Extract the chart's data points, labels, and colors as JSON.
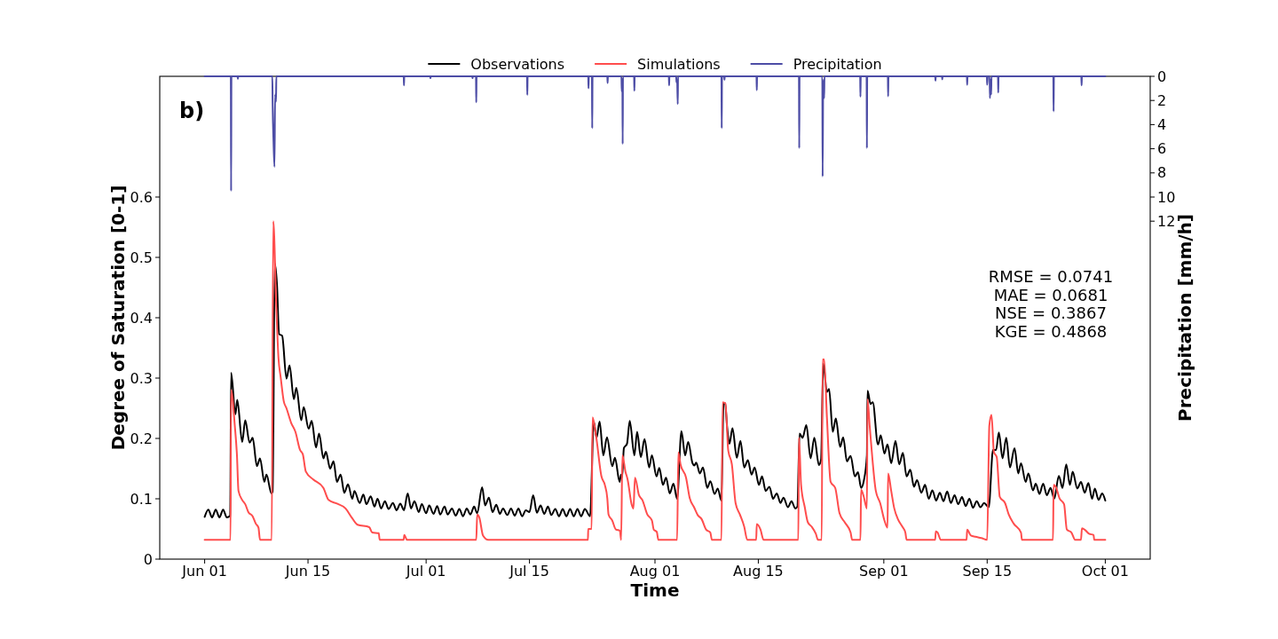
{
  "chart_data": {
    "type": "line",
    "xlabel": "Time",
    "ylabel": "Degree of Saturation [0-1]",
    "y2label": "Precipitation [mm/h]",
    "annotations": [
      "b)",
      "RMSE = 0.0741\nMAE = 0.0681\nNSE = 0.3867\nKGE = 0.4868"
    ],
    "xlim": [
      "--05-25T22:00",
      "--10-07T02:00"
    ],
    "xticks": [
      {
        "value": "--06-01",
        "label": "Jun 01"
      },
      {
        "value": "--06-15",
        "label": "Jun 15"
      },
      {
        "value": "--07-01",
        "label": "Jul 01"
      },
      {
        "value": "--07-15",
        "label": "Jul 15"
      },
      {
        "value": "--08-01",
        "label": "Aug 01"
      },
      {
        "value": "--08-15",
        "label": "Aug 15"
      },
      {
        "value": "--09-01",
        "label": "Sep 01"
      },
      {
        "value": "--09-15",
        "label": "Sep 15"
      },
      {
        "value": "--10-01",
        "label": "Oct 01"
      }
    ],
    "ylim": [
      0,
      0.8
    ],
    "yticks": [
      0,
      0.1,
      0.2,
      0.3,
      0.4,
      0.5,
      0.6
    ],
    "y2lim": [
      40,
      0
    ],
    "y2ticks": [
      0,
      2,
      4,
      6,
      8,
      10,
      12
    ],
    "legend": "top",
    "series": [
      {
        "name": "Observations",
        "color": "#000000",
        "x": [
          "--06-01T00:00",
          "--06-01T12:00",
          "--06-02T00:00",
          "--06-02T12:00",
          "--06-03T00:00",
          "--06-03T12:00",
          "--06-04T00:00",
          "--06-04T11:00",
          "--06-04T14:00",
          "--06-05T04:00",
          "--06-05T10:00",
          "--06-06T02:00",
          "--06-06T12:00",
          "--06-07T02:00",
          "--06-07T12:00",
          "--06-08T02:00",
          "--06-08T12:00",
          "--06-09T02:00",
          "--06-09T09:00",
          "--06-10T01:00",
          "--06-10T05:00",
          "--06-10T12:00",
          "--06-10T19:00",
          "--06-11T02:00",
          "--06-11T12:00",
          "--06-12T02:00",
          "--06-12T12:00",
          "--06-13T02:00",
          "--06-13T10:00",
          "--06-14T02:00",
          "--06-14T10:00",
          "--06-15T02:00",
          "--06-15T12:00",
          "--06-16T02:00",
          "--06-16T12:00",
          "--06-17T02:00",
          "--06-17T10:00",
          "--06-18T00:00",
          "--06-18T11:00",
          "--06-18T22:00",
          "--06-19T10:00",
          "--06-19T22:00",
          "--06-20T10:00",
          "--06-21T00:00",
          "--06-21T07:00",
          "--06-22T00:00",
          "--06-22T12:00",
          "--06-22T22:00",
          "--06-23T12:00",
          "--06-24T00:00",
          "--06-24T10:00",
          "--06-24T22:00",
          "--06-25T10:00",
          "--06-25T22:00",
          "--06-26T12:00",
          "--06-27T00:00",
          "--06-27T12:00",
          "--06-28T00:00",
          "--06-28T12:00",
          "--06-28T23:00",
          "--06-29T10:00",
          "--06-30T00:00",
          "--06-30T10:00",
          "--07-01T00:00",
          "--07-01T10:00",
          "--07-02T00:00",
          "--07-02T12:00",
          "--07-02T22:00",
          "--07-03T12:00",
          "--07-03T22:00",
          "--07-04T12:00",
          "--07-05T00:00",
          "--07-05T12:00",
          "--07-06T00:00",
          "--07-06T12:00",
          "--07-07T00:00",
          "--07-07T12:00",
          "--07-07T22:00",
          "--07-08T14:00",
          "--07-09T00:00",
          "--07-09T12:00",
          "--07-10T00:00",
          "--07-10T12:00",
          "--07-11T00:00",
          "--07-11T10:00",
          "--07-12T00:00",
          "--07-12T12:00",
          "--07-13T00:00",
          "--07-13T12:00",
          "--07-14T00:00",
          "--07-14T12:00",
          "--07-15T00:00",
          "--07-15T12:00",
          "--07-16T00:00",
          "--07-16T12:00",
          "--07-17T00:00",
          "--07-17T12:00",
          "--07-17T23:00",
          "--07-18T12:00",
          "--07-19T00:00",
          "--07-19T12:00",
          "--07-20T00:00",
          "--07-20T12:00",
          "--07-21T00:00",
          "--07-21T12:00",
          "--07-22T00:00",
          "--07-22T12:00",
          "--07-23T05:00",
          "--07-23T17:00",
          "--07-24T02:00",
          "--07-24T12:00",
          "--07-25T00:00",
          "--07-25T12:00",
          "--07-26T05:00",
          "--07-26T14:00",
          "--07-27T05:00",
          "--07-27T10:00",
          "--07-27T13:00",
          "--07-27T19:00",
          "--07-28T05:00",
          "--07-28T14:00",
          "--07-29T05:00",
          "--07-29T14:00",
          "--07-30T02:00",
          "--07-30T14:00",
          "--07-31T05:00",
          "--07-31T14:00",
          "--08-01T05:00",
          "--08-01T14:00",
          "--08-02T02:00",
          "--08-02T12:00",
          "--08-03T00:00",
          "--08-03T12:00",
          "--08-04T00:00",
          "--08-04T14:00",
          "--08-05T02:00",
          "--08-05T12:00",
          "--08-06T02:00",
          "--08-06T08:00",
          "--08-06T14:00",
          "--08-07T02:00",
          "--08-07T12:00",
          "--08-08T02:00",
          "--08-08T12:00",
          "--08-09T02:00",
          "--08-09T12:00",
          "--08-10T00:00",
          "--08-10T07:00",
          "--08-10T12:00",
          "--08-10T19:00",
          "--08-11T02:00",
          "--08-11T12:00",
          "--08-12T02:00",
          "--08-12T14:00",
          "--08-13T02:00",
          "--08-13T14:00",
          "--08-14T02:00",
          "--08-14T12:00",
          "--08-15T02:00",
          "--08-15T12:00",
          "--08-16T00:00",
          "--08-16T12:00",
          "--08-17T00:00",
          "--08-17T12:00",
          "--08-18T00:00",
          "--08-18T10:00",
          "--08-19T00:00",
          "--08-19T12:00",
          "--08-20T00:00",
          "--08-20T07:00",
          "--08-20T14:00",
          "--08-21T00:00",
          "--08-21T12:00",
          "--08-22T02:00",
          "--08-22T14:00",
          "--08-23T05:00",
          "--08-23T12:00",
          "--08-23T19:00",
          "--08-24T07:00",
          "--08-24T14:00",
          "--08-25T02:00",
          "--08-25T12:00",
          "--08-26T02:00",
          "--08-26T12:00",
          "--08-27T00:00",
          "--08-27T12:00",
          "--08-28T02:00",
          "--08-28T12:00",
          "--08-28T22:00",
          "--08-29T07:00",
          "--08-29T17:00",
          "--08-29T19:00",
          "--08-30T05:00",
          "--08-30T12:00",
          "--08-31T05:00",
          "--08-31T14:00",
          "--09-01T02:00",
          "--09-01T12:00",
          "--09-02T00:00",
          "--09-02T14:00",
          "--09-03T02:00",
          "--09-03T14:00",
          "--09-04T02:00",
          "--09-04T14:00",
          "--09-05T02:00",
          "--09-05T12:00",
          "--09-06T02:00",
          "--09-06T14:00",
          "--09-07T02:00",
          "--09-07T14:00",
          "--09-08T02:00",
          "--09-08T14:00",
          "--09-09T02:00",
          "--09-09T14:00",
          "--09-10T02:00",
          "--09-10T14:00",
          "--09-11T02:00",
          "--09-11T14:00",
          "--09-12T02:00",
          "--09-12T14:00",
          "--09-13T02:00",
          "--09-13T14:00",
          "--09-14T02:00",
          "--09-14T14:00",
          "--09-15T05:00",
          "--09-15T19:00",
          "--09-16T05:00",
          "--09-16T14:00",
          "--09-17T02:00",
          "--09-17T14:00",
          "--09-18T02:00",
          "--09-18T17:00",
          "--09-19T05:00",
          "--09-19T14:00",
          "--09-20T05:00",
          "--09-20T14:00",
          "--09-21T05:00",
          "--09-21T14:00",
          "--09-22T02:00",
          "--09-22T14:00",
          "--09-23T02:00",
          "--09-23T14:00",
          "--09-24T02:00",
          "--09-24T17:00",
          "--09-25T05:00",
          "--09-25T17:00",
          "--09-26T05:00",
          "--09-26T14:00",
          "--09-27T05:00",
          "--09-27T17:00",
          "--09-28T05:00",
          "--09-28T17:00",
          "--09-29T05:00",
          "--09-29T14:00",
          "--09-30T02:00",
          "--09-30T14:00",
          "--10-01T00:00"
        ],
        "values": [
          0.07,
          0.082,
          0.069,
          0.082,
          0.069,
          0.082,
          0.069,
          0.072,
          0.309,
          0.24,
          0.264,
          0.194,
          0.23,
          0.193,
          0.201,
          0.154,
          0.167,
          0.128,
          0.14,
          0.109,
          0.112,
          0.49,
          0.456,
          0.373,
          0.37,
          0.299,
          0.321,
          0.265,
          0.284,
          0.23,
          0.252,
          0.216,
          0.229,
          0.185,
          0.208,
          0.167,
          0.178,
          0.15,
          0.162,
          0.128,
          0.14,
          0.11,
          0.124,
          0.1,
          0.113,
          0.093,
          0.107,
          0.091,
          0.104,
          0.087,
          0.1,
          0.084,
          0.096,
          0.083,
          0.093,
          0.081,
          0.092,
          0.081,
          0.109,
          0.084,
          0.096,
          0.078,
          0.091,
          0.076,
          0.089,
          0.075,
          0.088,
          0.074,
          0.087,
          0.074,
          0.084,
          0.072,
          0.083,
          0.071,
          0.084,
          0.074,
          0.087,
          0.076,
          0.119,
          0.089,
          0.102,
          0.078,
          0.09,
          0.075,
          0.084,
          0.073,
          0.084,
          0.072,
          0.084,
          0.071,
          0.081,
          0.078,
          0.106,
          0.077,
          0.089,
          0.075,
          0.087,
          0.073,
          0.083,
          0.071,
          0.083,
          0.071,
          0.083,
          0.071,
          0.083,
          0.071,
          0.083,
          0.071,
          0.228,
          0.201,
          0.228,
          0.172,
          0.202,
          0.154,
          0.168,
          0.128,
          0.14,
          0.135,
          0.184,
          0.191,
          0.229,
          0.172,
          0.211,
          0.169,
          0.199,
          0.152,
          0.172,
          0.137,
          0.151,
          0.123,
          0.135,
          0.109,
          0.125,
          0.1,
          0.212,
          0.172,
          0.194,
          0.159,
          0.155,
          0.16,
          0.142,
          0.152,
          0.118,
          0.129,
          0.108,
          0.117,
          0.097,
          0.259,
          0.258,
          0.216,
          0.191,
          0.217,
          0.168,
          0.196,
          0.152,
          0.164,
          0.14,
          0.152,
          0.123,
          0.137,
          0.113,
          0.12,
          0.1,
          0.109,
          0.093,
          0.102,
          0.086,
          0.096,
          0.084,
          0.087,
          0.208,
          0.201,
          0.222,
          0.167,
          0.201,
          0.156,
          0.165,
          0.324,
          0.277,
          0.282,
          0.211,
          0.233,
          0.186,
          0.202,
          0.162,
          0.171,
          0.137,
          0.144,
          0.118,
          0.13,
          0.172,
          0.279,
          0.257,
          0.26,
          0.19,
          0.205,
          0.175,
          0.19,
          0.159,
          0.196,
          0.157,
          0.176,
          0.137,
          0.148,
          0.12,
          0.131,
          0.11,
          0.123,
          0.1,
          0.114,
          0.097,
          0.11,
          0.096,
          0.112,
          0.093,
          0.106,
          0.091,
          0.103,
          0.088,
          0.1,
          0.085,
          0.096,
          0.086,
          0.093,
          0.086,
          0.181,
          0.181,
          0.21,
          0.167,
          0.201,
          0.152,
          0.184,
          0.142,
          0.159,
          0.128,
          0.142,
          0.114,
          0.125,
          0.108,
          0.125,
          0.106,
          0.118,
          0.1,
          0.138,
          0.118,
          0.157,
          0.123,
          0.145,
          0.117,
          0.128,
          0.11,
          0.126,
          0.1,
          0.117,
          0.098,
          0.109,
          0.097
        ]
      },
      {
        "name": "Simulations",
        "color": "#ff4d4d",
        "x": [
          "--06-01T00:00",
          "--06-04T12:00",
          "--06-04T14:00",
          "--06-05T02:00",
          "--06-05T09:00",
          "--06-05T14:00",
          "--06-06T02:00",
          "--06-06T12:00",
          "--06-06T22:00",
          "--06-07T12:00",
          "--06-07T22:00",
          "--06-08T07:00",
          "--06-08T12:00",
          "--06-10T02:00",
          "--06-10T07:00",
          "--06-10T17:00",
          "--06-11T00:00",
          "--06-11T07:00",
          "--06-11T17:00",
          "--06-12T02:00",
          "--06-12T17:00",
          "--06-13T07:00",
          "--06-13T22:00",
          "--06-14T07:00",
          "--06-14T17:00",
          "--06-15T17:00",
          "--06-17T02:00",
          "--06-17T19:00",
          "--06-18T22:00",
          "--06-20T02:00",
          "--06-20T22:00",
          "--06-21T17:00",
          "--06-23T07:00",
          "--06-23T17:00",
          "--06-24T14:00",
          "--06-24T17:00",
          "--06-27T23:00",
          "--06-28T01:00",
          "--06-28T10:00",
          "--07-07T19:00",
          "--07-07T22:00",
          "--07-08T05:00",
          "--07-08T17:00",
          "--07-09T10:00",
          "--07-22T22:00",
          "--07-22T23:00",
          "--07-23T10:00",
          "--07-23T13:00",
          "--07-24T00:00",
          "--07-24T18:00",
          "--07-25T05:00",
          "--07-25T13:00",
          "--07-25T17:00",
          "--07-26T05:00",
          "--07-26T17:00",
          "--07-27T06:00",
          "--07-27T10:00",
          "--07-27T14:00",
          "--07-28T00:00",
          "--07-28T07:00",
          "--07-28T20:00",
          "--07-29T02:00",
          "--07-29T07:00",
          "--07-29T20:00",
          "--07-30T07:00",
          "--07-30T23:00",
          "--07-31T14:00",
          "--07-31T20:00",
          "--08-01T06:00",
          "--08-01T11:00",
          "--08-04T00:00",
          "--08-04T04:00",
          "--08-04T11:00",
          "--08-05T05:00",
          "--08-05T17:00",
          "--08-06T07:00",
          "--08-06T19:00",
          "--08-07T08:00",
          "--08-07T22:00",
          "--08-08T12:00",
          "--08-08T17:00",
          "--08-10T00:00",
          "--08-10T04:00",
          "--08-10T13:00",
          "--08-10T22:00",
          "--08-11T10:00",
          "--08-11T22:00",
          "--08-12T12:00",
          "--08-13T02:00",
          "--08-13T12:00",
          "--08-14T17:00",
          "--08-14T19:00",
          "--08-15T07:00",
          "--08-15T17:00",
          "--08-20T10:00",
          "--08-20T12:00",
          "--08-20T19:00",
          "--08-21T07:00",
          "--08-21T17:00",
          "--08-22T05:00",
          "--08-22T19:00",
          "--08-23T02:00",
          "--08-23T14:00",
          "--08-23T17:00",
          "--08-23T22:00",
          "--08-24T07:00",
          "--08-24T19:00",
          "--08-25T10:00",
          "--08-26T00:00",
          "--08-26T17:00",
          "--08-27T12:00",
          "--08-27T17:00",
          "--08-28T20:00",
          "--08-28T22:00",
          "--08-29T07:00",
          "--08-29T17:00",
          "--08-29T19:00",
          "--08-30T02:00",
          "--08-30T22:00",
          "--08-31T12:00",
          "--09-01T02:00",
          "--09-01T12:00",
          "--09-01T14:00",
          "--09-02T00:00",
          "--09-02T10:00",
          "--09-02T22:00",
          "--09-03T12:00",
          "--09-03T22:00",
          "--09-04T02:00",
          "--09-07T23:00",
          "--09-08T01:00",
          "--09-08T07:00",
          "--09-08T17:00",
          "--09-12T05:00",
          "--09-12T07:00",
          "--09-12T19:00",
          "--09-13T10:00",
          "--09-14T05:00",
          "--09-15T00:00",
          "--09-15T07:00",
          "--09-15T14:00",
          "--09-15T22:00",
          "--09-16T07:00",
          "--09-16T17:00",
          "--09-17T10:00",
          "--09-17T22:00",
          "--09-18T14:00",
          "--09-19T14:00",
          "--09-19T17:00",
          "--09-23T22:00",
          "--09-24T00:00",
          "--09-24T07:00",
          "--09-24T19:00",
          "--09-25T10:00",
          "--09-25T19:00",
          "--09-26T10:00",
          "--09-26T22:00",
          "--09-27T17:00",
          "--09-27T20:00",
          "--09-28T07:00",
          "--09-28T19:00",
          "--09-29T10:00",
          "--09-29T12:00",
          "--10-01T00:00"
        ],
        "values": [
          0.032,
          0.032,
          0.28,
          0.221,
          0.172,
          0.113,
          0.098,
          0.091,
          0.078,
          0.071,
          0.059,
          0.052,
          0.032,
          0.032,
          0.56,
          0.417,
          0.333,
          0.302,
          0.262,
          0.25,
          0.226,
          0.211,
          0.181,
          0.174,
          0.145,
          0.132,
          0.118,
          0.098,
          0.092,
          0.084,
          0.069,
          0.057,
          0.053,
          0.044,
          0.043,
          0.032,
          0.032,
          0.04,
          0.032,
          0.032,
          0.074,
          0.069,
          0.039,
          0.032,
          0.032,
          0.05,
          0.05,
          0.235,
          0.206,
          0.137,
          0.123,
          0.101,
          0.074,
          0.064,
          0.049,
          0.047,
          0.032,
          0.172,
          0.145,
          0.132,
          0.091,
          0.084,
          0.135,
          0.106,
          0.098,
          0.074,
          0.064,
          0.049,
          0.045,
          0.032,
          0.032,
          0.177,
          0.157,
          0.135,
          0.101,
          0.086,
          0.073,
          0.066,
          0.049,
          0.044,
          0.032,
          0.032,
          0.26,
          0.258,
          0.181,
          0.157,
          0.093,
          0.074,
          0.054,
          0.032,
          0.032,
          0.058,
          0.049,
          0.032,
          0.032,
          0.201,
          0.123,
          0.086,
          0.061,
          0.054,
          0.042,
          0.032,
          0.032,
          0.331,
          0.331,
          0.235,
          0.128,
          0.118,
          0.076,
          0.061,
          0.044,
          0.032,
          0.032,
          0.115,
          0.103,
          0.084,
          0.265,
          0.221,
          0.113,
          0.093,
          0.064,
          0.052,
          0.142,
          0.113,
          0.084,
          0.066,
          0.054,
          0.044,
          0.032,
          0.032,
          0.046,
          0.044,
          0.032,
          0.032,
          0.049,
          0.039,
          0.037,
          0.035,
          0.032,
          0.221,
          0.239,
          0.177,
          0.169,
          0.103,
          0.093,
          0.074,
          0.059,
          0.044,
          0.032,
          0.032,
          0.123,
          0.12,
          0.101,
          0.091,
          0.049,
          0.044,
          0.032,
          0.032,
          0.051,
          0.048,
          0.042,
          0.04,
          0.032,
          0.032
        ]
      },
      {
        "name": "Precipitation",
        "color": "#4d4da6",
        "axis": "y2",
        "x": [
          "--06-01T00:00",
          "--06-04T13:00",
          "--06-04T14:00",
          "--06-04T15:00",
          "--06-05T11:00",
          "--06-05T12:00",
          "--06-05T13:00",
          "--06-10T04:00",
          "--06-10T05:00",
          "--06-10T08:00",
          "--06-10T11:00",
          "--06-10T13:00",
          "--06-10T16:00",
          "--06-10T17:00",
          "--06-27T23:00",
          "--06-28T00:00",
          "--06-28T01:00",
          "--07-01T13:00",
          "--07-01T14:00",
          "--07-01T15:00",
          "--07-07T06:00",
          "--07-07T07:00",
          "--07-07T08:00",
          "--07-07T18:00",
          "--07-07T19:00",
          "--07-07T20:00",
          "--07-14T16:00",
          "--07-14T17:00",
          "--07-14T18:00",
          "--07-22T23:00",
          "--07-23T00:00",
          "--07-23T01:00",
          "--07-23T11:00",
          "--07-23T12:00",
          "--07-23T13:00",
          "--07-25T13:00",
          "--07-25T14:00",
          "--07-25T15:00",
          "--07-27T11:00",
          "--07-27T12:00",
          "--07-27T14:00",
          "--07-27T15:00",
          "--07-27T16:00",
          "--07-29T04:00",
          "--07-29T05:00",
          "--07-29T06:00",
          "--08-02T21:00",
          "--08-02T22:00",
          "--08-02T23:00",
          "--08-03T21:00",
          "--08-03T22:00",
          "--08-04T00:00",
          "--08-04T02:00",
          "--08-04T03:00",
          "--08-10T00:00",
          "--08-10T01:00",
          "--08-10T02:00",
          "--08-10T09:00",
          "--08-10T10:00",
          "--08-10T11:00",
          "--08-14T18:00",
          "--08-14T19:00",
          "--08-14T20:00",
          "--08-20T12:00",
          "--08-20T13:00",
          "--08-20T14:00",
          "--08-23T16:00",
          "--08-23T17:00",
          "--08-23T19:00",
          "--08-23T22:00",
          "--08-23T23:00",
          "--08-28T19:00",
          "--08-28T20:00",
          "--08-28T21:00",
          "--08-29T16:00",
          "--08-29T17:00",
          "--08-29T18:00",
          "--09-01T13:00",
          "--09-01T14:00",
          "--09-01T15:00",
          "--09-07T23:00",
          "--09-08T00:00",
          "--09-08T01:00",
          "--09-08T21:00",
          "--09-08T22:00",
          "--09-08T23:00",
          "--09-12T06:00",
          "--09-12T07:00",
          "--09-12T08:00",
          "--09-14T23:00",
          "--09-15T00:00",
          "--09-15T02:00",
          "--09-15T08:00",
          "--09-15T09:00",
          "--09-15T11:00",
          "--09-15T13:00",
          "--09-15T14:00",
          "--09-16T11:00",
          "--09-16T12:00",
          "--09-16T13:00",
          "--09-23T23:00",
          "--09-24T00:00",
          "--09-24T01:00",
          "--09-27T18:00",
          "--09-27T19:00",
          "--09-27T20:00",
          "--10-01T00:00"
        ],
        "values": [
          0,
          0,
          9.5,
          0,
          0,
          0.2,
          0,
          0,
          2.2,
          5.5,
          7.5,
          1.5,
          2.1,
          0,
          0,
          0.75,
          0,
          0,
          0.15,
          0,
          0,
          0.15,
          0,
          0,
          2.15,
          0,
          0,
          1.55,
          0,
          0,
          1,
          0,
          0,
          4.3,
          0,
          0,
          0.55,
          0,
          0,
          1.25,
          0.2,
          5.6,
          0,
          0,
          1.2,
          0,
          0,
          0.75,
          0,
          0,
          0.5,
          0.3,
          2.3,
          0,
          0,
          4.3,
          0,
          0,
          0.3,
          0,
          0,
          1.15,
          0,
          0,
          5.95,
          0,
          0,
          8.3,
          0.3,
          1.8,
          0,
          0,
          1.7,
          0,
          0,
          5.95,
          0,
          0,
          1.65,
          0,
          0,
          0.35,
          0,
          0,
          0.25,
          0,
          0,
          0.7,
          0,
          0,
          0.7,
          0,
          0,
          1.8,
          0.3,
          1.5,
          0,
          0,
          1.35,
          0,
          0,
          2.9,
          0,
          0,
          0.75,
          0,
          0
        ]
      }
    ]
  }
}
